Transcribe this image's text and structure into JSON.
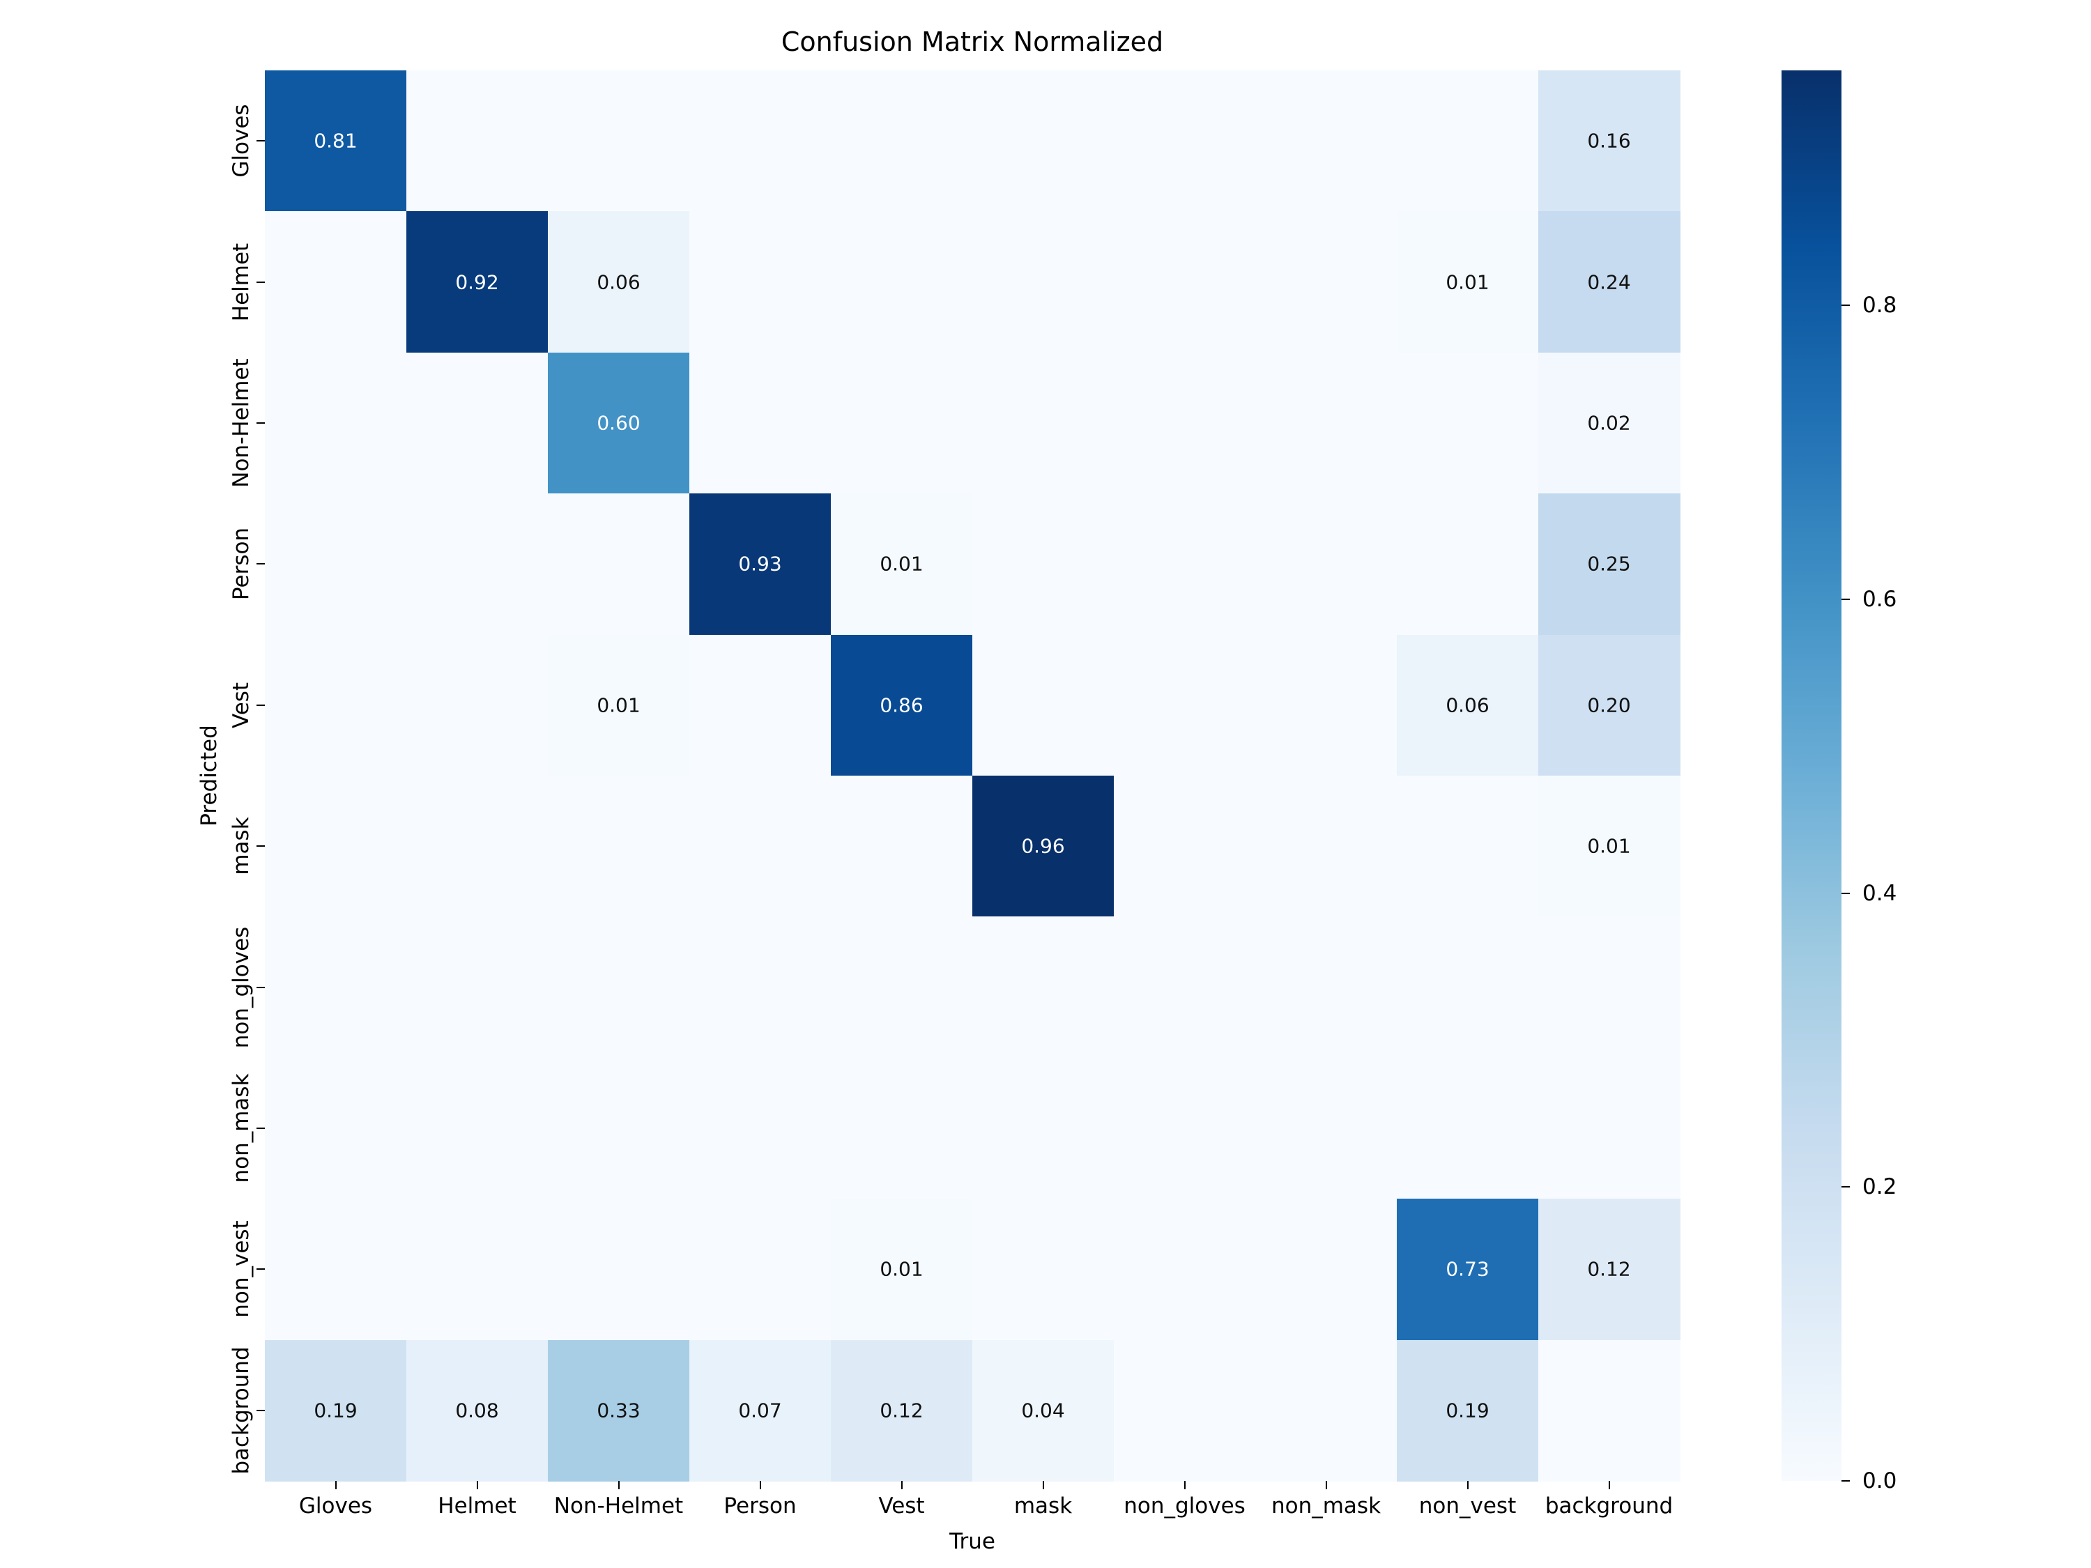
{
  "chart_data": {
    "type": "heatmap",
    "title": "Confusion Matrix Normalized",
    "xlabel": "True",
    "ylabel": "Predicted",
    "categories": [
      "Gloves",
      "Helmet",
      "Non-Helmet",
      "Person",
      "Vest",
      "mask",
      "non_gloves",
      "non_mask",
      "non_vest",
      "background"
    ],
    "vmin": 0.0,
    "vmax": 0.96,
    "colormap": "Blues",
    "legend_position": "right-colorbar",
    "colorbar_ticks": [
      0.0,
      0.2,
      0.4,
      0.6,
      0.8
    ],
    "matrix": [
      [
        0.81,
        null,
        null,
        null,
        null,
        null,
        null,
        null,
        null,
        0.16
      ],
      [
        null,
        0.92,
        0.06,
        null,
        null,
        null,
        null,
        null,
        0.01,
        0.24
      ],
      [
        null,
        null,
        0.6,
        null,
        null,
        null,
        null,
        null,
        null,
        0.02
      ],
      [
        null,
        null,
        null,
        0.93,
        0.01,
        null,
        null,
        null,
        null,
        0.25
      ],
      [
        null,
        null,
        0.01,
        null,
        0.86,
        null,
        null,
        null,
        0.06,
        0.2
      ],
      [
        null,
        null,
        null,
        null,
        null,
        0.96,
        null,
        null,
        null,
        0.01
      ],
      [
        null,
        null,
        null,
        null,
        null,
        null,
        null,
        null,
        null,
        null
      ],
      [
        null,
        null,
        null,
        null,
        null,
        null,
        null,
        null,
        null,
        null
      ],
      [
        null,
        null,
        null,
        null,
        0.01,
        null,
        null,
        null,
        0.73,
        0.12
      ],
      [
        0.19,
        0.08,
        0.33,
        0.07,
        0.12,
        0.04,
        null,
        null,
        0.19,
        null
      ]
    ]
  }
}
